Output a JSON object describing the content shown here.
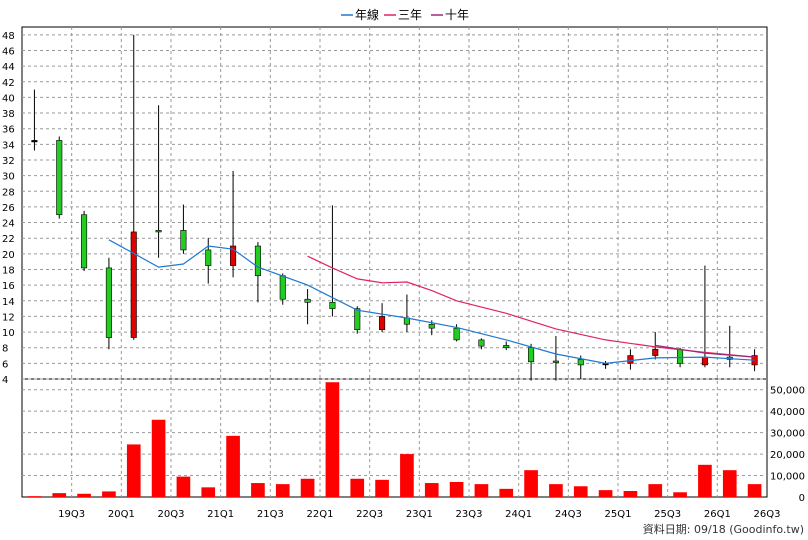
{
  "chart_data": {
    "type": "candlestick",
    "legend": [
      {
        "name": "年線",
        "color": "#1f78d1"
      },
      {
        "name": "三年",
        "color": "#e0245e"
      },
      {
        "name": "十年",
        "color": "#9c2a7a"
      }
    ],
    "legend_position": "top-center",
    "grid": true,
    "x_tick_labels": [
      "19Q3",
      "20Q1",
      "20Q3",
      "21Q1",
      "21Q3",
      "22Q1",
      "22Q3",
      "23Q1",
      "23Q3",
      "24Q1",
      "24Q3",
      "25Q1",
      "25Q3",
      "26Q1",
      "26Q3"
    ],
    "price_axis": {
      "ylim": [
        4,
        49
      ],
      "ticks": [
        4,
        6,
        8,
        10,
        12,
        14,
        16,
        18,
        20,
        22,
        24,
        26,
        28,
        30,
        32,
        34,
        36,
        38,
        40,
        42,
        44,
        46,
        48
      ]
    },
    "volume_axis": {
      "ylim": [
        0,
        55000
      ],
      "ticks": [
        0,
        10000,
        20000,
        30000,
        40000,
        50000
      ],
      "tick_labels": [
        "0",
        "10,000",
        "20,000",
        "30,000",
        "40,000",
        "50,000"
      ]
    },
    "candles": [
      {
        "x": 0,
        "open": 34.5,
        "close": 34.5,
        "high": 41,
        "low": 33.2
      },
      {
        "x": 1,
        "open": 34.5,
        "close": 25,
        "high": 35,
        "low": 24.5
      },
      {
        "x": 2,
        "open": 25,
        "close": 18.2,
        "high": 25.5,
        "low": 17.8
      },
      {
        "x": 3,
        "open": 18.2,
        "close": 9.3,
        "high": 19.5,
        "low": 7.8
      },
      {
        "x": 4,
        "open": 9.3,
        "close": 22.8,
        "high": 48,
        "low": 9
      },
      {
        "x": 5,
        "open": 23,
        "close": 22.8,
        "high": 39,
        "low": 19.5
      },
      {
        "x": 6,
        "open": 23,
        "close": 20.5,
        "high": 26.3,
        "low": 20
      },
      {
        "x": 7,
        "open": 20.5,
        "close": 18.5,
        "high": 22,
        "low": 16.2
      },
      {
        "x": 8,
        "open": 18.5,
        "close": 21,
        "high": 30.6,
        "low": 17
      },
      {
        "x": 9,
        "open": 21,
        "close": 17.2,
        "high": 21.5,
        "low": 13.8
      },
      {
        "x": 10,
        "open": 17.2,
        "close": 14.2,
        "high": 17.5,
        "low": 13.5
      },
      {
        "x": 11,
        "open": 14.2,
        "close": 13.8,
        "high": 15.5,
        "low": 11
      },
      {
        "x": 12,
        "open": 13.8,
        "close": 13,
        "high": 26.2,
        "low": 12
      },
      {
        "x": 13,
        "open": 13,
        "close": 10.3,
        "high": 13.3,
        "low": 9.8
      },
      {
        "x": 14,
        "open": 10.3,
        "close": 12,
        "high": 13.7,
        "low": 10
      },
      {
        "x": 15,
        "open": 11.8,
        "close": 11,
        "high": 14.8,
        "low": 10
      },
      {
        "x": 16,
        "open": 11,
        "close": 10.5,
        "high": 11.5,
        "low": 9.6
      },
      {
        "x": 17,
        "open": 10.5,
        "close": 9,
        "high": 11,
        "low": 8.8
      },
      {
        "x": 18,
        "open": 9,
        "close": 8.2,
        "high": 9.2,
        "low": 7.8
      },
      {
        "x": 19,
        "open": 8.3,
        "close": 8,
        "high": 8.8,
        "low": 7.7
      },
      {
        "x": 20,
        "open": 8,
        "close": 6.2,
        "high": 8.5,
        "low": 3.8
      },
      {
        "x": 21,
        "open": 6.3,
        "close": 6.2,
        "high": 9.5,
        "low": 3.8
      },
      {
        "x": 22,
        "open": 6.5,
        "close": 5.8,
        "high": 7,
        "low": 4
      },
      {
        "x": 23,
        "open": 6,
        "close": 6,
        "high": 6.3,
        "low": 5.3
      },
      {
        "x": 24,
        "open": 6,
        "close": 7,
        "high": 7.8,
        "low": 5.2
      },
      {
        "x": 25,
        "open": 7,
        "close": 7.8,
        "high": 10,
        "low": 6.5
      },
      {
        "x": 26,
        "open": 7.8,
        "close": 6,
        "high": 8,
        "low": 5.5
      },
      {
        "x": 27,
        "open": 5.8,
        "close": 6.8,
        "high": 18.5,
        "low": 5.5
      },
      {
        "x": 28,
        "open": 6.8,
        "close": 6.5,
        "high": 10.8,
        "low": 5.5
      },
      {
        "x": 29,
        "open": 5.8,
        "close": 7,
        "high": 7.8,
        "low": 5
      }
    ],
    "volume": [
      400,
      1800,
      1500,
      2600,
      24500,
      36000,
      9500,
      4500,
      28500,
      6500,
      6000,
      8500,
      53500,
      8500,
      8000,
      20000,
      6500,
      7000,
      6000,
      3800,
      12500,
      6000,
      5000,
      3200,
      2800,
      6000,
      2200,
      15000,
      12500,
      6000
    ],
    "lines": {
      "年線": [
        [
          3,
          21.8
        ],
        [
          5,
          18.3
        ],
        [
          6,
          18.7
        ],
        [
          7,
          21
        ],
        [
          8,
          20.6
        ],
        [
          9,
          18.3
        ],
        [
          11,
          16
        ],
        [
          13,
          12.8
        ],
        [
          15,
          11.8
        ],
        [
          17,
          10.6
        ],
        [
          19,
          9
        ],
        [
          21,
          7.2
        ],
        [
          23,
          6
        ],
        [
          25,
          6.7
        ],
        [
          27,
          6.8
        ],
        [
          29,
          6.4
        ]
      ],
      "三年": [
        [
          11,
          19.7
        ],
        [
          12,
          18.2
        ],
        [
          13,
          16.8
        ],
        [
          14,
          16.3
        ],
        [
          15,
          16.4
        ],
        [
          16,
          15.3
        ],
        [
          17,
          14
        ],
        [
          19,
          12.4
        ],
        [
          21,
          10.4
        ],
        [
          23,
          9
        ],
        [
          25,
          8.1
        ],
        [
          27,
          7.4
        ],
        [
          29,
          6.8
        ]
      ],
      "十年": [
        [
          25,
          8.3
        ],
        [
          27,
          7.3
        ],
        [
          29,
          6.8
        ]
      ]
    },
    "credit": "資料日期: 09/18 (Goodinfo.tw)"
  }
}
